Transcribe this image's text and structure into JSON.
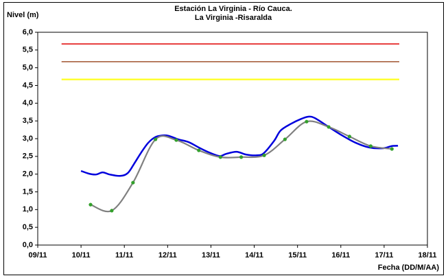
{
  "chart_data": {
    "type": "line",
    "title": "Estación La Virginia  - Río Cauca.",
    "subtitle": "La Virginia -Risaralda",
    "y_label": "Nivel (m)",
    "x_label": "Fecha (DD/M/AA)",
    "xlim": [
      9,
      18
    ],
    "xticks": [
      {
        "value": 9,
        "label": "09/11"
      },
      {
        "value": 10,
        "label": "10/11"
      },
      {
        "value": 11,
        "label": "11/11"
      },
      {
        "value": 12,
        "label": "12/11"
      },
      {
        "value": 13,
        "label": "13/11"
      },
      {
        "value": 14,
        "label": "14/11"
      },
      {
        "value": 15,
        "label": "15/11"
      },
      {
        "value": 16,
        "label": "16/11"
      },
      {
        "value": 17,
        "label": "17/11"
      },
      {
        "value": 18,
        "label": "18/11"
      }
    ],
    "ylim": [
      0,
      6
    ],
    "yticks": [
      {
        "value": 0,
        "label": "0,0"
      },
      {
        "value": 0.5,
        "label": "0,5"
      },
      {
        "value": 1,
        "label": "1,0"
      },
      {
        "value": 1.5,
        "label": "1,5"
      },
      {
        "value": 2,
        "label": "2,0"
      },
      {
        "value": 2.5,
        "label": "2,5"
      },
      {
        "value": 3,
        "label": "3,0"
      },
      {
        "value": 3.5,
        "label": "3,5"
      },
      {
        "value": 4,
        "label": "4,0"
      },
      {
        "value": 4.5,
        "label": "4,5"
      },
      {
        "value": 5,
        "label": "5,0"
      },
      {
        "value": 5.5,
        "label": "5,5"
      },
      {
        "value": 6,
        "label": "6,0"
      }
    ],
    "series": [
      {
        "color": "#e00000",
        "width": 1.5,
        "x": [
          9.55,
          17.35
        ],
        "values": [
          5.67,
          5.67
        ]
      },
      {
        "color": "#a0522d",
        "width": 1.5,
        "x": [
          9.55,
          17.35
        ],
        "values": [
          5.17,
          5.17
        ]
      },
      {
        "color": "#ffff33",
        "width": 2.5,
        "x": [
          9.55,
          17.35
        ],
        "values": [
          4.67,
          4.67
        ]
      },
      {
        "color": "#0000dd",
        "width": 2.5,
        "x": [
          10.0,
          10.19,
          10.35,
          10.5,
          10.66,
          10.9,
          11.08,
          11.24,
          11.39,
          11.55,
          11.71,
          11.87,
          12.02,
          12.25,
          12.49,
          12.72,
          12.96,
          13.2,
          13.35,
          13.59,
          13.82,
          14.06,
          14.22,
          14.46,
          14.61,
          14.85,
          15.09,
          15.25,
          15.4,
          15.72,
          16.03,
          16.35,
          16.66,
          16.98,
          17.17,
          17.32
        ],
        "values": [
          2.09,
          2.01,
          1.99,
          2.05,
          1.99,
          1.95,
          2.03,
          2.32,
          2.61,
          2.88,
          3.04,
          3.09,
          3.08,
          2.98,
          2.9,
          2.75,
          2.61,
          2.51,
          2.57,
          2.63,
          2.55,
          2.53,
          2.59,
          2.94,
          3.23,
          3.42,
          3.56,
          3.62,
          3.58,
          3.33,
          3.09,
          2.88,
          2.75,
          2.73,
          2.79,
          2.8
        ]
      },
      {
        "color": "#808080",
        "marker_color": "#33a02c",
        "width": 2.2,
        "x": [
          10.22,
          10.71,
          11.2,
          11.72,
          12.2,
          12.72,
          13.22,
          13.7,
          14.23,
          14.71,
          15.21,
          15.72,
          16.2,
          16.69,
          17.18
        ],
        "values": [
          1.14,
          0.97,
          1.76,
          2.98,
          2.96,
          2.67,
          2.48,
          2.48,
          2.53,
          2.98,
          3.48,
          3.33,
          3.06,
          2.79,
          2.71
        ]
      }
    ]
  }
}
